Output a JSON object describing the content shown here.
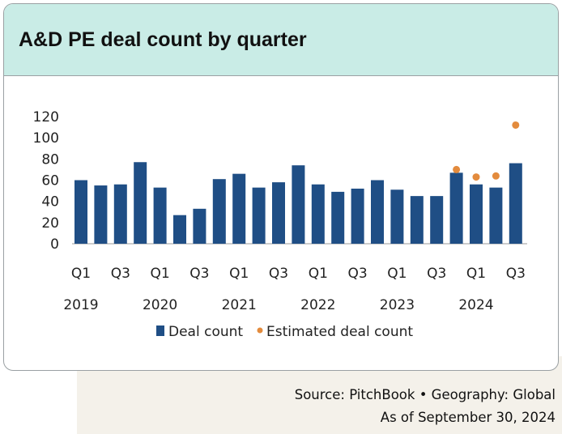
{
  "header": {
    "title": "A&D PE deal count by quarter"
  },
  "chart_data": {
    "type": "bar",
    "title": "A&D PE deal count by quarter",
    "categories": [
      "Q1 2019",
      "Q2 2019",
      "Q3 2019",
      "Q4 2019",
      "Q1 2020",
      "Q2 2020",
      "Q3 2020",
      "Q4 2020",
      "Q1 2021",
      "Q2 2021",
      "Q3 2021",
      "Q4 2021",
      "Q1 2022",
      "Q2 2022",
      "Q3 2022",
      "Q4 2022",
      "Q1 2023",
      "Q2 2023",
      "Q3 2023",
      "Q4 2023",
      "Q1 2024",
      "Q2 2024",
      "Q3 2024"
    ],
    "series": [
      {
        "name": "Deal count",
        "kind": "bar",
        "color": "#1f4e85",
        "values": [
          60,
          55,
          56,
          77,
          53,
          27,
          33,
          61,
          66,
          53,
          58,
          74,
          56,
          49,
          52,
          60,
          51,
          45,
          45,
          67,
          56,
          53,
          76
        ]
      },
      {
        "name": "Estimated deal count",
        "kind": "point",
        "color": "#e38b3d",
        "values": [
          null,
          null,
          null,
          null,
          null,
          null,
          null,
          null,
          null,
          null,
          null,
          null,
          null,
          null,
          null,
          null,
          null,
          null,
          null,
          70,
          63,
          64,
          112
        ]
      }
    ],
    "tick_labels": [
      "Q1",
      "Q3",
      "Q1",
      "Q3",
      "Q1",
      "Q3",
      "Q1",
      "Q3",
      "Q1",
      "Q3",
      "Q1",
      "Q3"
    ],
    "year_labels": [
      "2019",
      "2020",
      "2021",
      "2022",
      "2023",
      "2024"
    ],
    "y_ticks": [
      0,
      20,
      40,
      60,
      80,
      100,
      120
    ],
    "ylim": [
      0,
      120
    ],
    "legend": {
      "position": "bottom",
      "items": [
        "Deal count",
        "Estimated deal count"
      ]
    }
  },
  "footer": {
    "source": "Source: PitchBook  •  Geography: Global",
    "as_of": "As of September 30, 2024"
  }
}
